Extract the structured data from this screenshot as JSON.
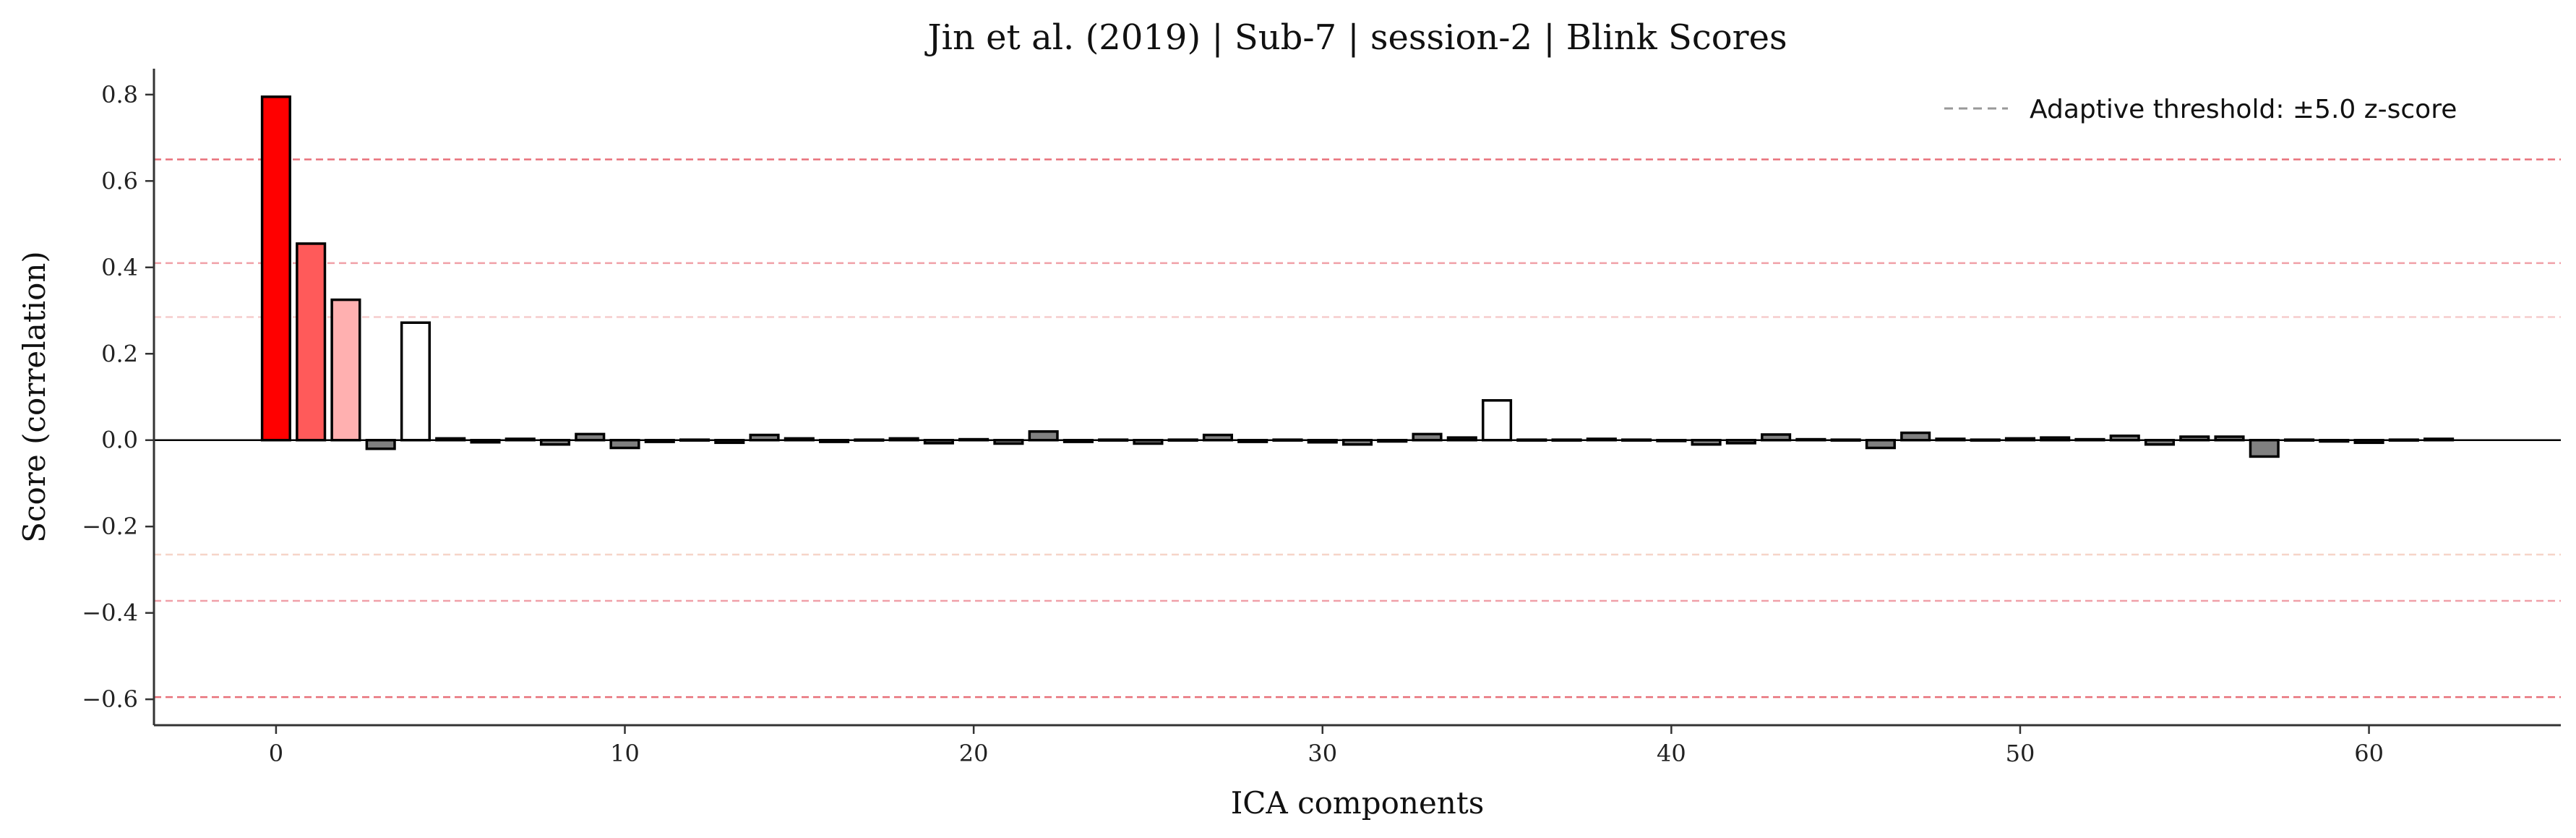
{
  "chart_data": {
    "type": "bar",
    "title": "Jin et al. (2019) | Sub-7 | session-2 | Blink Scores",
    "xlabel": "ICA components",
    "ylabel": "Score (correlation)",
    "xlim": [
      -3.5,
      65.5
    ],
    "ylim": [
      -0.66,
      0.86
    ],
    "xticks": [
      0,
      10,
      20,
      30,
      40,
      50,
      60
    ],
    "yticks": [
      -0.6,
      -0.4,
      -0.2,
      0.0,
      0.2,
      0.4,
      0.6,
      0.8
    ],
    "ytick_labels": [
      "−0.6",
      "−0.4",
      "−0.2",
      "0.0",
      "0.2",
      "0.4",
      "0.6",
      "0.8"
    ],
    "x": [
      0,
      1,
      2,
      3,
      4,
      5,
      6,
      7,
      8,
      9,
      10,
      11,
      12,
      13,
      14,
      15,
      16,
      17,
      18,
      19,
      20,
      21,
      22,
      23,
      24,
      25,
      26,
      27,
      28,
      29,
      30,
      31,
      32,
      33,
      34,
      35,
      36,
      37,
      38,
      39,
      40,
      41,
      42,
      43,
      44,
      45,
      46,
      47,
      48,
      49,
      50,
      51,
      52,
      53,
      54,
      55,
      56,
      57,
      58,
      59,
      60,
      61,
      62
    ],
    "values": [
      0.795,
      0.455,
      0.325,
      -0.02,
      0.272,
      0.004,
      -0.005,
      0.003,
      -0.01,
      0.014,
      -0.018,
      -0.004,
      0.001,
      -0.006,
      0.012,
      0.004,
      -0.004,
      0.001,
      0.004,
      -0.007,
      0.002,
      -0.008,
      0.02,
      -0.004,
      0.001,
      -0.008,
      0.001,
      0.012,
      -0.004,
      0.001,
      -0.005,
      -0.01,
      -0.003,
      0.014,
      0.006,
      0.092,
      0.001,
      0.001,
      0.003,
      0.001,
      -0.002,
      -0.01,
      -0.007,
      0.013,
      0.002,
      0.001,
      -0.018,
      0.017,
      0.003,
      0.001,
      0.004,
      0.006,
      0.002,
      0.01,
      -0.01,
      0.008,
      0.008,
      -0.038,
      0.001,
      -0.003,
      -0.006,
      0.001,
      0.003
    ],
    "bar_colors": {
      "0": "#ff0000",
      "1": "#ff5a5a",
      "2": "#ffb0b0",
      "4": "#ffffff",
      "35": "#ffffff",
      "default": "#808080"
    },
    "threshold_lines": [
      {
        "y": 0.65,
        "color": "#e8707a"
      },
      {
        "y": 0.41,
        "color": "#f0a0a8"
      },
      {
        "y": 0.285,
        "color": "#f6cccc"
      },
      {
        "y": -0.265,
        "color": "#f6d4c8"
      },
      {
        "y": -0.372,
        "color": "#f0a0a8"
      },
      {
        "y": -0.595,
        "color": "#e8707a"
      }
    ],
    "legend": {
      "label": "Adaptive threshold: ±5.0 z-score",
      "placement": "top-right",
      "line_color": "#999999"
    },
    "grid": false
  }
}
